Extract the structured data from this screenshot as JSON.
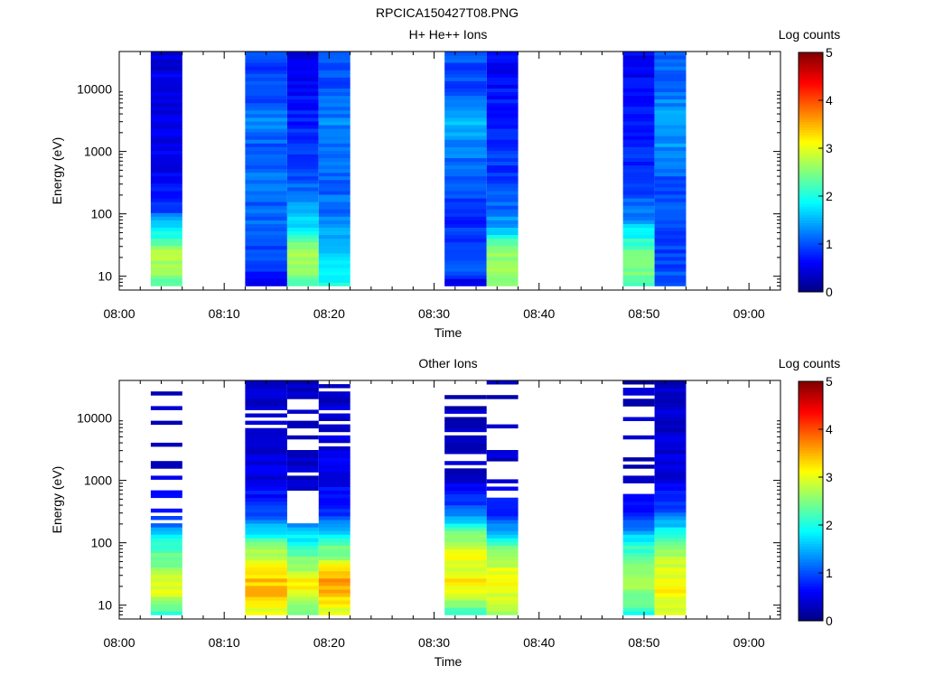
{
  "figure_title": "RPCICA150427T08.PNG",
  "colorbar": {
    "title": "Log counts",
    "ticks": [
      "0",
      "1",
      "2",
      "3",
      "4",
      "5"
    ],
    "range": [
      0,
      5
    ],
    "colormap": "jet"
  },
  "chart_data": [
    {
      "type": "heatmap",
      "title": "H+ He++ Ions",
      "xlabel": "Time",
      "ylabel": "Energy (eV)",
      "x_tick_labels": [
        "08:00",
        "08:10",
        "08:20",
        "08:30",
        "08:40",
        "08:50",
        "09:00"
      ],
      "y_tick_labels": [
        "10",
        "100",
        "1000",
        "10000"
      ],
      "xlim": [
        "08:00",
        "09:03"
      ],
      "ylim": [
        6,
        40000
      ],
      "yscale": "log",
      "grid": false,
      "columns": [
        {
          "start": "08:03",
          "end": "08:06",
          "profile": [
            [
              8,
              2.3
            ],
            [
              15,
              2.7
            ],
            [
              25,
              2.7
            ],
            [
              40,
              2.1
            ],
            [
              60,
              1.9
            ],
            [
              80,
              1.4
            ],
            [
              120,
              0.9
            ],
            [
              300,
              0.6
            ],
            [
              1000,
              0.5
            ],
            [
              5000,
              0.5
            ],
            [
              40000,
              0.5
            ]
          ]
        },
        {
          "start": "08:12",
          "end": "08:16",
          "profile": [
            [
              8,
              0.6
            ],
            [
              15,
              0.9
            ],
            [
              25,
              1.0
            ],
            [
              50,
              1.1
            ],
            [
              100,
              1.1
            ],
            [
              300,
              1.2
            ],
            [
              1000,
              1.0
            ],
            [
              3000,
              1.3
            ],
            [
              10000,
              0.9
            ],
            [
              40000,
              1.0
            ]
          ]
        },
        {
          "start": "08:16",
          "end": "08:19",
          "profile": [
            [
              8,
              2.2
            ],
            [
              15,
              2.7
            ],
            [
              25,
              2.7
            ],
            [
              40,
              2.3
            ],
            [
              60,
              1.8
            ],
            [
              100,
              1.5
            ],
            [
              300,
              1.1
            ],
            [
              1000,
              0.9
            ],
            [
              10000,
              0.6
            ],
            [
              40000,
              0.5
            ]
          ]
        },
        {
          "start": "08:19",
          "end": "08:22",
          "profile": [
            [
              8,
              2.0
            ],
            [
              15,
              1.8
            ],
            [
              25,
              1.6
            ],
            [
              50,
              1.4
            ],
            [
              100,
              1.2
            ],
            [
              300,
              1.1
            ],
            [
              1000,
              1.1
            ],
            [
              3000,
              1.3
            ],
            [
              10000,
              1.0
            ],
            [
              40000,
              1.0
            ]
          ]
        },
        {
          "start": "08:31",
          "end": "08:35",
          "profile": [
            [
              8,
              0.5
            ],
            [
              15,
              1.2
            ],
            [
              25,
              1.0
            ],
            [
              100,
              0.8
            ],
            [
              300,
              1.1
            ],
            [
              1000,
              1.2
            ],
            [
              3000,
              1.5
            ],
            [
              10000,
              1.0
            ],
            [
              40000,
              1.0
            ]
          ]
        },
        {
          "start": "08:35",
          "end": "08:38",
          "profile": [
            [
              8,
              2.4
            ],
            [
              15,
              2.6
            ],
            [
              25,
              2.6
            ],
            [
              40,
              2.1
            ],
            [
              60,
              1.5
            ],
            [
              100,
              1.2
            ],
            [
              300,
              0.9
            ],
            [
              1000,
              0.9
            ],
            [
              10000,
              0.7
            ],
            [
              40000,
              0.6
            ]
          ]
        },
        {
          "start": "08:48",
          "end": "08:51",
          "profile": [
            [
              8,
              2.3
            ],
            [
              15,
              2.6
            ],
            [
              25,
              2.5
            ],
            [
              40,
              2.0
            ],
            [
              60,
              1.7
            ],
            [
              100,
              1.2
            ],
            [
              300,
              0.9
            ],
            [
              1000,
              0.8
            ],
            [
              10000,
              0.6
            ],
            [
              40000,
              0.6
            ]
          ]
        },
        {
          "start": "08:51",
          "end": "08:54",
          "profile": [
            [
              8,
              1.1
            ],
            [
              15,
              1.0
            ],
            [
              25,
              0.9
            ],
            [
              100,
              1.0
            ],
            [
              300,
              1.0
            ],
            [
              1000,
              1.3
            ],
            [
              3000,
              1.5
            ],
            [
              10000,
              1.2
            ],
            [
              40000,
              1.0
            ]
          ]
        }
      ]
    },
    {
      "type": "heatmap",
      "title": "Other Ions",
      "xlabel": "Time",
      "ylabel": "Energy (eV)",
      "x_tick_labels": [
        "08:00",
        "08:10",
        "08:20",
        "08:30",
        "08:40",
        "08:50",
        "09:00"
      ],
      "y_tick_labels": [
        "10",
        "100",
        "1000",
        "10000"
      ],
      "xlim": [
        "08:00",
        "09:03"
      ],
      "ylim": [
        6,
        40000
      ],
      "yscale": "log",
      "grid": false,
      "columns": [
        {
          "start": "08:03",
          "end": "08:06",
          "profile": [
            [
              8,
              2.2
            ],
            [
              15,
              2.9
            ],
            [
              25,
              3.0
            ],
            [
              40,
              2.6
            ],
            [
              60,
              2.4
            ],
            [
              100,
              2.1
            ],
            [
              150,
              1.5
            ],
            [
              300,
              0.7
            ],
            [
              1000,
              0.4
            ],
            [
              40000,
              0.3
            ]
          ],
          "sparse_above": 200,
          "fill": 0.3
        },
        {
          "start": "08:12",
          "end": "08:16",
          "profile": [
            [
              8,
              3.0
            ],
            [
              15,
              3.4
            ],
            [
              25,
              3.4
            ],
            [
              40,
              3.1
            ],
            [
              60,
              2.8
            ],
            [
              100,
              2.4
            ],
            [
              150,
              1.7
            ],
            [
              300,
              0.9
            ],
            [
              1000,
              0.5
            ],
            [
              40000,
              0.3
            ]
          ],
          "sparse_above": 4000,
          "fill": 0.8
        },
        {
          "start": "08:16",
          "end": "08:19",
          "profile": [
            [
              8,
              2.3
            ],
            [
              15,
              3.1
            ],
            [
              25,
              3.2
            ],
            [
              40,
              2.6
            ],
            [
              60,
              2.4
            ],
            [
              100,
              2.0
            ],
            [
              150,
              1.6
            ],
            [
              300,
              0.8
            ],
            [
              1000,
              0.4
            ],
            [
              40000,
              0.3
            ]
          ],
          "sparse_above": 200,
          "fill": 0.5
        },
        {
          "start": "08:19",
          "end": "08:22",
          "profile": [
            [
              8,
              3.0
            ],
            [
              15,
              3.4
            ],
            [
              25,
              3.7
            ],
            [
              40,
              3.2
            ],
            [
              60,
              2.6
            ],
            [
              100,
              2.3
            ],
            [
              150,
              1.5
            ],
            [
              300,
              0.9
            ],
            [
              1000,
              0.6
            ],
            [
              40000,
              0.3
            ]
          ],
          "sparse_above": 3000,
          "fill": 0.7
        },
        {
          "start": "08:31",
          "end": "08:35",
          "profile": [
            [
              8,
              2.2
            ],
            [
              15,
              3.0
            ],
            [
              25,
              3.2
            ],
            [
              40,
              3.0
            ],
            [
              60,
              3.0
            ],
            [
              100,
              2.8
            ],
            [
              150,
              2.3
            ],
            [
              300,
              1.2
            ],
            [
              1000,
              0.4
            ],
            [
              40000,
              0.3
            ]
          ],
          "sparse_above": 1500,
          "fill": 0.65
        },
        {
          "start": "08:35",
          "end": "08:38",
          "profile": [
            [
              8,
              2.6
            ],
            [
              15,
              3.0
            ],
            [
              25,
              3.2
            ],
            [
              40,
              2.9
            ],
            [
              60,
              2.6
            ],
            [
              100,
              2.2
            ],
            [
              150,
              1.4
            ],
            [
              300,
              0.8
            ],
            [
              1000,
              0.4
            ],
            [
              40000,
              0.3
            ]
          ],
          "sparse_above": 400,
          "fill": 0.3
        },
        {
          "start": "08:48",
          "end": "08:51",
          "profile": [
            [
              8,
              2.1
            ],
            [
              15,
              2.5
            ],
            [
              25,
              2.7
            ],
            [
              40,
              2.5
            ],
            [
              60,
              2.3
            ],
            [
              100,
              2.0
            ],
            [
              150,
              1.4
            ],
            [
              300,
              0.7
            ],
            [
              1000,
              0.4
            ],
            [
              40000,
              0.3
            ]
          ],
          "sparse_above": 600,
          "fill": 0.4
        },
        {
          "start": "08:51",
          "end": "08:54",
          "profile": [
            [
              8,
              3.0
            ],
            [
              15,
              3.1
            ],
            [
              25,
              3.1
            ],
            [
              40,
              2.9
            ],
            [
              60,
              2.8
            ],
            [
              100,
              2.5
            ],
            [
              150,
              1.9
            ],
            [
              300,
              1.0
            ],
            [
              1000,
              0.5
            ],
            [
              40000,
              0.3
            ]
          ],
          "sparse_above": 30000,
          "fill": 0.85
        }
      ]
    }
  ]
}
